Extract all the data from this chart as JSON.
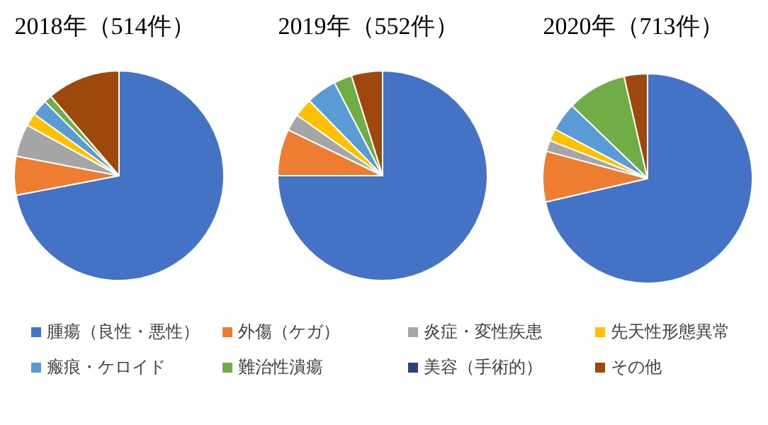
{
  "chart_data": [
    {
      "type": "pie",
      "title": "2018年（514件）",
      "legend": "bottom",
      "categories": [
        "腫瘍（良性・悪性）",
        "外傷（ケガ）",
        "炎症・変性疾患",
        "先天性形態異常",
        "瘢痕・ケロイド",
        "難治性潰瘍",
        "美容（手術的）",
        "その他"
      ],
      "values": [
        72,
        6,
        5,
        2,
        2.5,
        1.2,
        0,
        11.3
      ],
      "colors": [
        "#4472c4",
        "#ed7d31",
        "#a5a5a5",
        "#ffc000",
        "#5b9bd5",
        "#70ad47",
        "#264478",
        "#9e480e"
      ]
    },
    {
      "type": "pie",
      "title": "2019年（552件）",
      "values": [
        75,
        7.2,
        2.6,
        2.9,
        4.7,
        2.8,
        0,
        4.8
      ],
      "colors": [
        "#4472c4",
        "#ed7d31",
        "#a5a5a5",
        "#ffc000",
        "#5b9bd5",
        "#70ad47",
        "#264478",
        "#9e480e"
      ]
    },
    {
      "type": "pie",
      "title": "2020年（713件）",
      "values": [
        71.4,
        7.8,
        1.7,
        1.9,
        4.4,
        9.2,
        0,
        3.6
      ],
      "colors": [
        "#4472c4",
        "#ed7d31",
        "#a5a5a5",
        "#ffc000",
        "#5b9bd5",
        "#70ad47",
        "#264478",
        "#9e480e"
      ]
    }
  ]
}
